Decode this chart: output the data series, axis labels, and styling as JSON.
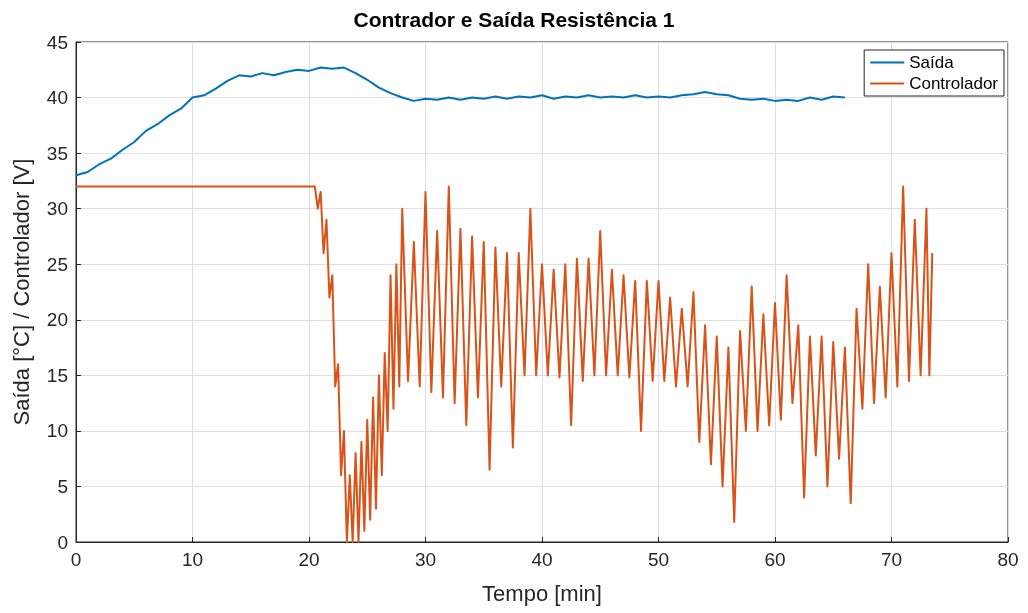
{
  "chart_data": {
    "type": "line",
    "title": "Contrador e Saída Resistência 1",
    "xlabel": "Tempo [min]",
    "ylabel": "Saída [°C] / Controlador [V]",
    "xlim": [
      0,
      80
    ],
    "xticks": [
      0,
      10,
      20,
      30,
      40,
      50,
      60,
      70,
      80
    ],
    "ylim": [
      0,
      45
    ],
    "yticks": [
      0,
      5,
      10,
      15,
      20,
      25,
      30,
      35,
      40,
      45
    ],
    "grid": true,
    "legend": "top right",
    "series": [
      {
        "name": "Saída",
        "color": "#0072bd",
        "x": [
          0,
          1,
          2,
          3,
          4,
          5,
          6,
          7,
          8,
          9,
          10,
          11,
          12,
          13,
          14,
          15,
          16,
          17,
          18,
          19,
          20,
          21,
          22,
          23,
          24,
          25,
          26,
          27,
          28,
          29,
          30,
          31,
          32,
          33,
          34,
          35,
          36,
          37,
          38,
          39,
          40,
          41,
          42,
          43,
          44,
          45,
          46,
          47,
          48,
          49,
          50,
          51,
          52,
          53,
          54,
          55,
          56,
          57,
          58,
          59,
          60,
          61,
          62,
          63,
          64,
          65,
          66
        ],
        "values": [
          33,
          33.3,
          34,
          34.5,
          35.3,
          36,
          37,
          37.6,
          38.4,
          39,
          40,
          40.2,
          40.8,
          41.5,
          42,
          41.9,
          42.2,
          42,
          42.3,
          42.5,
          42.4,
          42.7,
          42.6,
          42.7,
          42.2,
          41.6,
          40.9,
          40.4,
          40,
          39.7,
          39.9,
          39.8,
          40,
          39.8,
          40,
          39.9,
          40.1,
          39.9,
          40.1,
          40,
          40.2,
          39.9,
          40.1,
          40,
          40.2,
          40,
          40.1,
          40,
          40.2,
          40,
          40.1,
          40,
          40.2,
          40.3,
          40.5,
          40.3,
          40.2,
          39.9,
          39.8,
          39.9,
          39.7,
          39.8,
          39.7,
          40,
          39.8,
          40.1,
          40
        ]
      },
      {
        "name": "Controlador",
        "color": "#d95319",
        "x": [
          0,
          20.5,
          20.75,
          21,
          21.25,
          21.5,
          21.75,
          22,
          22.25,
          22.5,
          22.75,
          23,
          23.25,
          23.5,
          23.75,
          24,
          24.25,
          24.5,
          24.75,
          25,
          25.25,
          25.5,
          25.75,
          26,
          26.25,
          26.5,
          26.75,
          27,
          27.25,
          27.5,
          27.75,
          28,
          28.5,
          29,
          29.5,
          30,
          30.5,
          31,
          31.5,
          32,
          32.5,
          33,
          33.5,
          34,
          34.5,
          35,
          35.5,
          36,
          36.5,
          37,
          37.5,
          38,
          38.5,
          39,
          39.5,
          40,
          40.5,
          41,
          41.5,
          42,
          42.5,
          43,
          43.5,
          44,
          44.5,
          45,
          45.5,
          46,
          46.5,
          47,
          47.5,
          48,
          48.5,
          49,
          49.5,
          50,
          50.5,
          51,
          51.5,
          52,
          52.5,
          53,
          53.5,
          54,
          54.5,
          55,
          55.5,
          56,
          56.5,
          57,
          57.5,
          58,
          58.5,
          59,
          59.5,
          60,
          60.5,
          61,
          61.5,
          62,
          62.5,
          63,
          63.5,
          64,
          64.5,
          65,
          65.5,
          66,
          66.5,
          67,
          67.5,
          68,
          68.5,
          69,
          69.5,
          70,
          70.5,
          71,
          71.5,
          72,
          72.5,
          73,
          73.25,
          73.5
        ],
        "values": [
          32,
          32,
          30,
          31.5,
          26,
          29,
          22,
          24,
          14,
          16,
          6,
          10,
          0,
          6,
          0,
          8,
          0,
          9,
          1,
          11,
          2,
          13,
          3,
          15,
          6,
          17,
          10,
          24,
          12,
          25,
          14,
          30,
          14.5,
          27,
          14,
          31.5,
          13.5,
          28,
          13,
          32,
          12.5,
          28.2,
          10.5,
          27.5,
          13,
          27,
          6.5,
          26.5,
          14,
          26,
          8.5,
          26,
          15,
          30,
          15,
          25,
          15,
          24.5,
          14.8,
          25,
          10.5,
          25.5,
          14.5,
          25.5,
          15,
          28,
          15,
          24.5,
          15,
          24,
          14.8,
          23.5,
          10,
          23.5,
          14.5,
          23.5,
          14.5,
          22,
          14,
          21,
          14,
          22.5,
          9,
          19.5,
          7,
          18.5,
          5,
          17.5,
          1.8,
          19,
          10,
          23,
          10,
          20.5,
          10.5,
          21.5,
          11,
          24,
          12.5,
          19.5,
          4,
          18.5,
          7.8,
          18.5,
          5,
          18,
          7.5,
          17.5,
          3.5,
          21,
          12,
          25,
          12.5,
          23,
          13,
          26,
          14,
          32,
          14.5,
          29,
          15,
          30,
          15,
          26
        ]
      }
    ]
  }
}
